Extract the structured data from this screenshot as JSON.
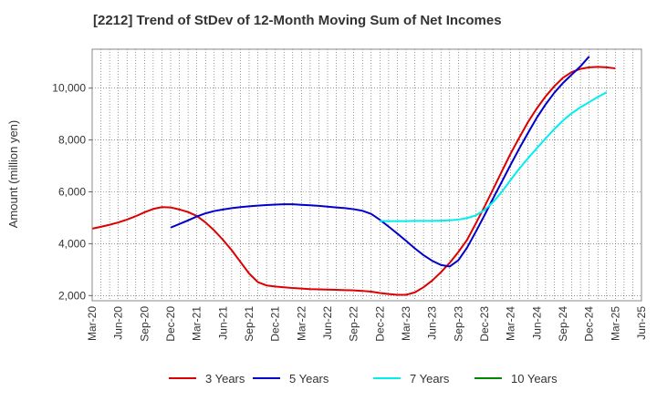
{
  "chart_data": {
    "type": "line",
    "title": "[2212]  Trend of StDev of 12-Month Moving Sum of Net Incomes",
    "xlabel": "",
    "ylabel": "Amount (million yen)",
    "ylim": [
      1800,
      11500
    ],
    "yticks": [
      2000,
      4000,
      6000,
      8000,
      10000
    ],
    "ytick_labels": [
      "2,000",
      "4,000",
      "6,000",
      "8,000",
      "10,000"
    ],
    "x_tick_labels": [
      "Mar-20",
      "Jun-20",
      "Sep-20",
      "Dec-20",
      "Mar-21",
      "Jun-21",
      "Sep-21",
      "Dec-21",
      "Mar-22",
      "Jun-22",
      "Sep-22",
      "Dec-22",
      "Mar-23",
      "Jun-23",
      "Sep-23",
      "Dec-23",
      "Mar-24",
      "Jun-24",
      "Sep-24",
      "Dec-24",
      "Mar-25",
      "Jun-25"
    ],
    "x_months": [
      "2020-03",
      "2020-04",
      "2020-05",
      "2020-06",
      "2020-07",
      "2020-08",
      "2020-09",
      "2020-10",
      "2020-11",
      "2020-12",
      "2021-01",
      "2021-02",
      "2021-03",
      "2021-04",
      "2021-05",
      "2021-06",
      "2021-07",
      "2021-08",
      "2021-09",
      "2021-10",
      "2021-11",
      "2021-12",
      "2022-01",
      "2022-02",
      "2022-03",
      "2022-04",
      "2022-05",
      "2022-06",
      "2022-07",
      "2022-08",
      "2022-09",
      "2022-10",
      "2022-11",
      "2022-12",
      "2023-01",
      "2023-02",
      "2023-03",
      "2023-04",
      "2023-05",
      "2023-06",
      "2023-07",
      "2023-08",
      "2023-09",
      "2023-10",
      "2023-11",
      "2023-12",
      "2024-01",
      "2024-02",
      "2024-03",
      "2024-04",
      "2024-05",
      "2024-06",
      "2024-07",
      "2024-08",
      "2024-09",
      "2024-10",
      "2024-11",
      "2024-12",
      "2025-01",
      "2025-02",
      "2025-03",
      "2025-04",
      "2025-05",
      "2025-06"
    ],
    "grid": true,
    "legend_position": "bottom",
    "series": [
      {
        "name": "3 Years",
        "color": "#dd0000",
        "start": "2020-03",
        "values": [
          4580,
          4650,
          4730,
          4820,
          4930,
          5060,
          5210,
          5340,
          5410,
          5400,
          5320,
          5220,
          5070,
          4820,
          4510,
          4150,
          3750,
          3300,
          2850,
          2520,
          2390,
          2350,
          2320,
          2290,
          2270,
          2250,
          2240,
          2230,
          2220,
          2210,
          2200,
          2180,
          2150,
          2100,
          2060,
          2030,
          2030,
          2120,
          2320,
          2580,
          2900,
          3260,
          3680,
          4150,
          4780,
          5430,
          6110,
          6800,
          7480,
          8100,
          8700,
          9220,
          9680,
          10070,
          10400,
          10620,
          10740,
          10800,
          10820,
          10800,
          10760
        ]
      },
      {
        "name": "5 Years",
        "color": "#0000cc",
        "start": "2020-12",
        "values": [
          4620,
          4760,
          4900,
          5050,
          5170,
          5260,
          5320,
          5370,
          5410,
          5440,
          5470,
          5490,
          5510,
          5520,
          5520,
          5500,
          5480,
          5460,
          5430,
          5400,
          5370,
          5330,
          5270,
          5150,
          4920,
          4660,
          4390,
          4110,
          3820,
          3560,
          3340,
          3180,
          3120,
          3360,
          3850,
          4460,
          5100,
          5760,
          6400,
          7050,
          7680,
          8280,
          8860,
          9370,
          9820,
          10200,
          10520,
          10840,
          11220
        ]
      },
      {
        "name": "7 Years",
        "color": "#00eeee",
        "start": "2022-12",
        "values": [
          4880,
          4870,
          4870,
          4870,
          4880,
          4880,
          4880,
          4890,
          4900,
          4930,
          4990,
          5090,
          5300,
          5610,
          6010,
          6460,
          6900,
          7300,
          7680,
          8060,
          8420,
          8750,
          9030,
          9260,
          9460,
          9660,
          9840
        ]
      },
      {
        "name": "10 Years",
        "color": "#008800",
        "start": "2020-03",
        "values": []
      }
    ]
  }
}
